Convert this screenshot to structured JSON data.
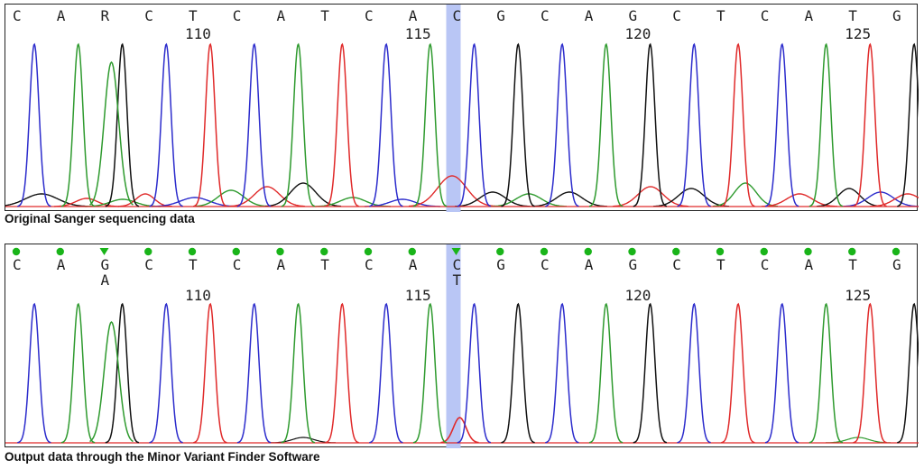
{
  "top_panel": {
    "caption": "Original Sanger sequencing data",
    "bases": [
      "C",
      "A",
      "R",
      "C",
      "T",
      "C",
      "A",
      "T",
      "C",
      "A",
      "C",
      "G",
      "C",
      "A",
      "G",
      "C",
      "T",
      "C",
      "A",
      "T",
      "G"
    ],
    "positions": [
      {
        "label": "110",
        "index": 4
      },
      {
        "label": "115",
        "index": 9
      },
      {
        "label": "120",
        "index": 14
      },
      {
        "label": "125",
        "index": 19
      }
    ]
  },
  "bottom_panel": {
    "caption": "Output data through the Minor Variant Finder Software",
    "bases": [
      "C",
      "A",
      "G",
      "C",
      "T",
      "C",
      "A",
      "T",
      "C",
      "A",
      "C",
      "G",
      "C",
      "A",
      "G",
      "C",
      "T",
      "C",
      "A",
      "T",
      "G"
    ],
    "minor_variants": [
      {
        "index": 2,
        "base": "A"
      },
      {
        "index": 10,
        "base": "T"
      }
    ],
    "positions": [
      {
        "label": "110",
        "index": 4
      },
      {
        "label": "115",
        "index": 9
      },
      {
        "label": "120",
        "index": 14
      },
      {
        "label": "125",
        "index": 19
      }
    ]
  },
  "highlight_index": 10,
  "colors": {
    "A": "#2e9a2e",
    "C": "#2c2ccc",
    "G": "#111111",
    "T": "#e02a2a",
    "highlight": "#b9c6f5",
    "marker_dot": "#19b419",
    "marker_triangle": "#19b419"
  },
  "icons": {
    "match": "green-dot-icon",
    "variant": "green-triangle-icon"
  }
}
